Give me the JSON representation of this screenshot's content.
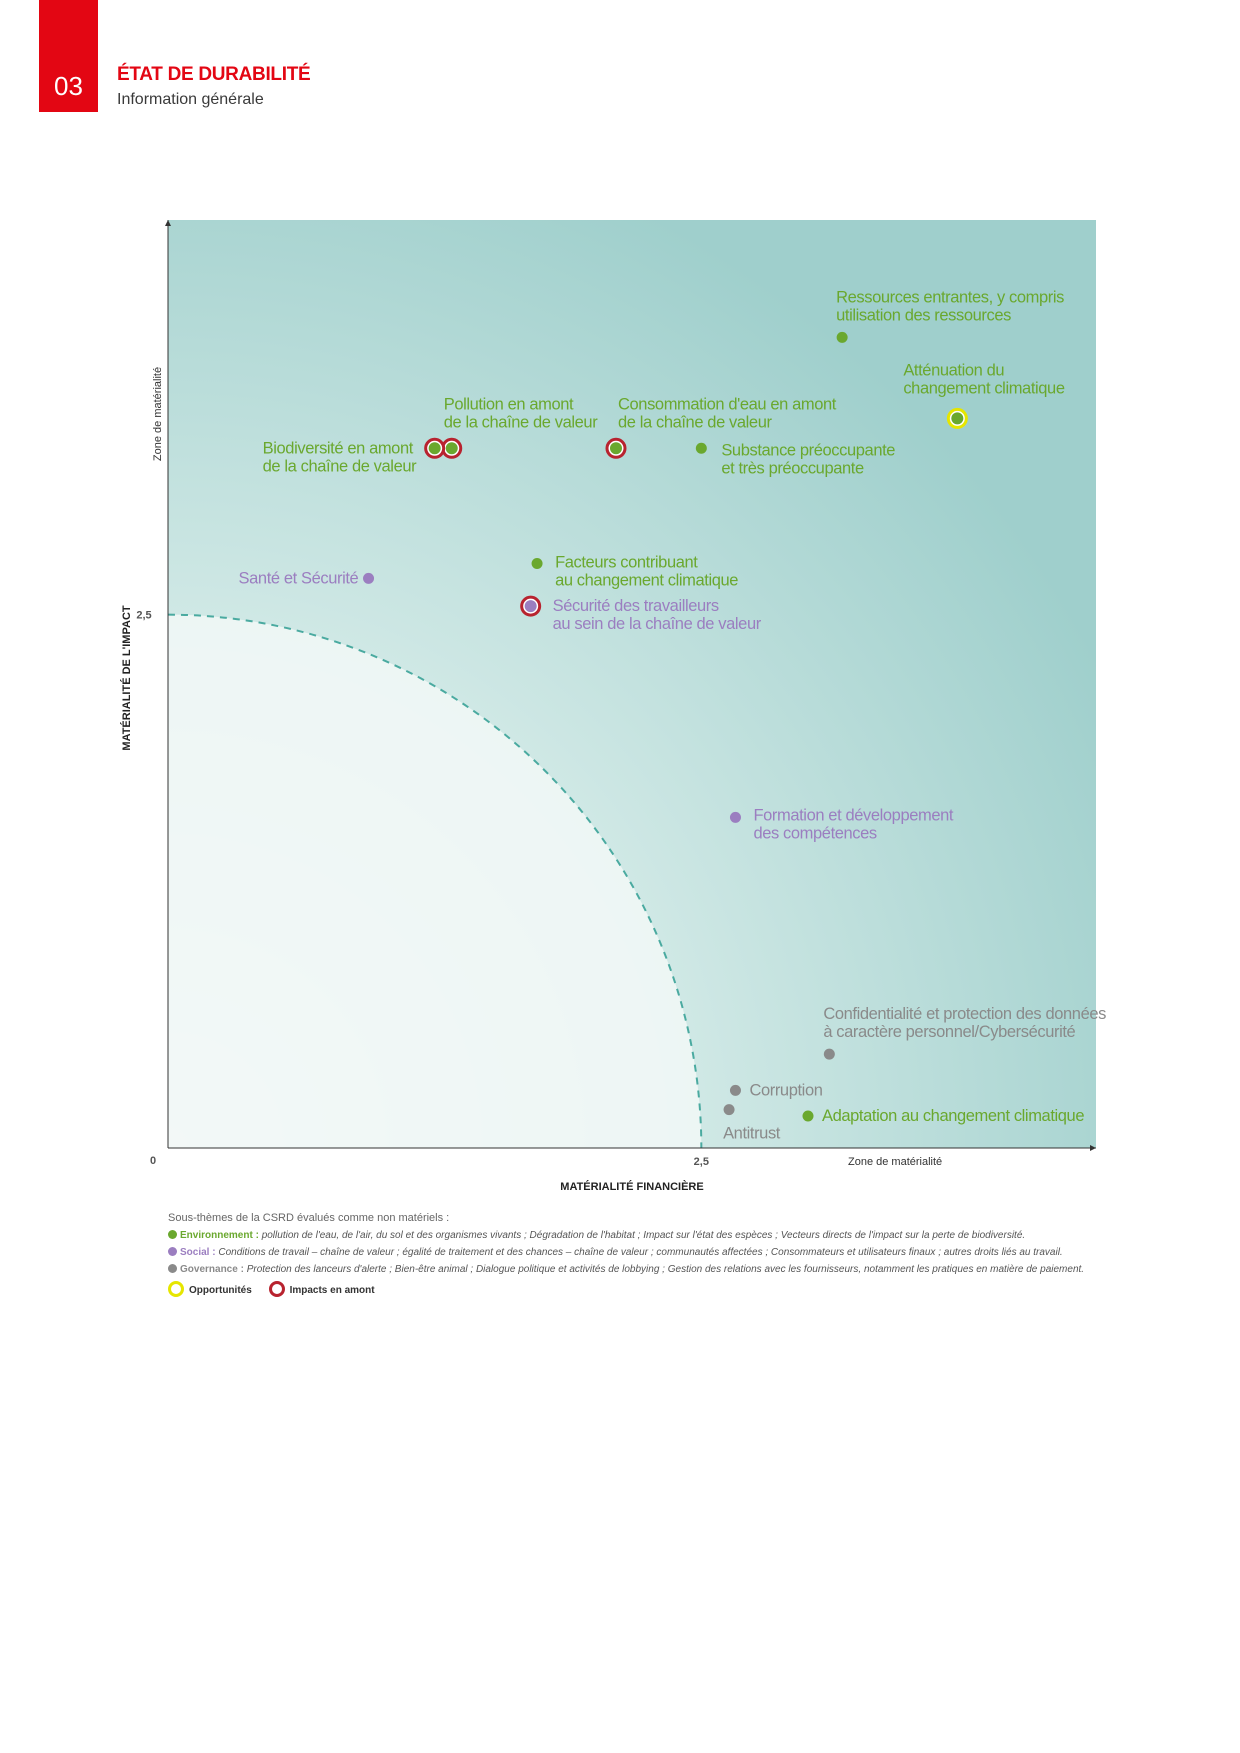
{
  "header": {
    "section_number": "03",
    "section_title": "ÉTAT DE DURABILITÉ",
    "section_subtitle": "Information générale"
  },
  "colors": {
    "brand_red": "#e30613",
    "environment": "#6aa82e",
    "social": "#9b7ec0",
    "governance": "#8a8a8a",
    "opportunity_ring": "#e6e600",
    "upstream_ring": "#b8232f",
    "threshold_line": "#4aaaa0"
  },
  "chart_data": {
    "type": "scatter",
    "xlabel": "MATÉRIALITÉ FINANCIÈRE",
    "ylabel": "MATÉRIALITÉ DE L'IMPACT",
    "x_zone_label": "Zone de matérialité",
    "y_zone_label": "Zone de matérialité",
    "origin_label": "0",
    "x_threshold_label": "2,5",
    "y_threshold_label": "2,5",
    "threshold": 2.5,
    "xlim": [
      0,
      4.35
    ],
    "ylim": [
      0,
      4.35
    ],
    "points": [
      {
        "label": "Ressources entrantes, y compris utilisation des ressources",
        "category": "environment",
        "x": 3.16,
        "y": 3.8,
        "rings": []
      },
      {
        "label": "Atténuation du changement climatique",
        "category": "environment",
        "x": 3.7,
        "y": 3.42,
        "rings": [
          "opportunity"
        ]
      },
      {
        "label": "Pollution en amont de la chaîne de valeur",
        "category": "environment",
        "x": 1.33,
        "y": 3.28,
        "rings": [
          "upstream"
        ]
      },
      {
        "label": "Biodiversité en amont de la chaîne de valeur",
        "category": "environment",
        "x": 1.25,
        "y": 3.28,
        "rings": [
          "upstream"
        ]
      },
      {
        "label": "Consommation d'eau en amont de la chaîne de valeur",
        "category": "environment",
        "x": 2.1,
        "y": 3.28,
        "rings": [
          "upstream"
        ]
      },
      {
        "label": "Substance préoccupante et très préoccupante",
        "category": "environment",
        "x": 2.5,
        "y": 3.28,
        "rings": []
      },
      {
        "label": "Facteurs contribuant au changement climatique",
        "category": "environment",
        "x": 1.73,
        "y": 2.74,
        "rings": []
      },
      {
        "label": "Santé et Sécurité",
        "category": "social",
        "x": 0.94,
        "y": 2.67,
        "rings": []
      },
      {
        "label": "Sécurité des travailleurs au sein de la chaîne de valeur",
        "category": "social",
        "x": 1.7,
        "y": 2.54,
        "rings": [
          "upstream"
        ]
      },
      {
        "label": "Formation et développement des compétences",
        "category": "social",
        "x": 2.66,
        "y": 1.55,
        "rings": []
      },
      {
        "label": "Confidentialité et protection des données à caractère personnel/Cybersécurité",
        "category": "governance",
        "x": 3.1,
        "y": 0.44,
        "rings": []
      },
      {
        "label": "Corruption",
        "category": "governance",
        "x": 2.66,
        "y": 0.27,
        "rings": []
      },
      {
        "label": "Antitrust",
        "category": "governance",
        "x": 2.63,
        "y": 0.18,
        "rings": []
      },
      {
        "label": "Adaptation au changement climatique",
        "category": "environment",
        "x": 3.0,
        "y": 0.15,
        "rings": []
      }
    ]
  },
  "legend": {
    "intro": "Sous-thèmes de la CSRD évalués comme non matériels :",
    "environment_label": "Environnement :",
    "environment_items": "pollution de l'eau, de l'air, du sol et des organismes vivants ; Dégradation de l'habitat ; Impact sur l'état des espèces ; Vecteurs directs de l'impact sur la perte de biodiversité.",
    "social_label": "Social :",
    "social_items": "Conditions de travail – chaîne de valeur ; égalité de traitement et des chances – chaîne de valeur ; communautés affectées ; Consommateurs et utilisateurs finaux ; autres droits liés au travail.",
    "governance_label": "Governance :",
    "governance_items": "Protection des lanceurs d'alerte ; Bien-être animal ; Dialogue politique et activités de lobbying ; Gestion des relations avec les fournisseurs, notamment les pratiques en matière de paiement.",
    "opportunities_label": "Opportunités",
    "upstream_label": "Impacts en amont"
  }
}
